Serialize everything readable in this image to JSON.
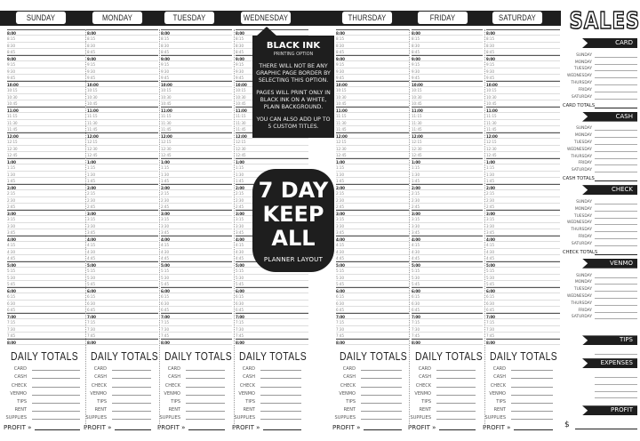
{
  "days": [
    "SUNDAY",
    "MONDAY",
    "TUESDAY",
    "WEDNESDAY",
    "THURSDAY",
    "FRIDAY",
    "SATURDAY"
  ],
  "times": [
    "8:00",
    "8:15",
    "8:30",
    "8:45",
    "9:00",
    "9:15",
    "9:30",
    "9:45",
    "10:00",
    "10:15",
    "10:30",
    "10:45",
    "11:00",
    "11:15",
    "11:30",
    "11:45",
    "12:00",
    "12:15",
    "12:30",
    "12:45",
    "1:00",
    "1:15",
    "1:30",
    "1:45",
    "2:00",
    "2:15",
    "2:30",
    "2:45",
    "3:00",
    "3:15",
    "3:30",
    "3:45",
    "4:00",
    "4:15",
    "4:30",
    "4:45",
    "5:00",
    "5:15",
    "5:30",
    "5:45",
    "6:00",
    "6:15",
    "6:30",
    "6:45",
    "7:00",
    "7:15",
    "7:30",
    "7:45",
    "8:00"
  ],
  "daily_totals": {
    "title": "DAILY TOTALS",
    "items": [
      "CARD",
      "CASH",
      "CHECK",
      "VENMO",
      "TIPS",
      "RENT",
      "SUPPLIES"
    ],
    "profit": "PROFIT »"
  },
  "sales": {
    "title": "SALES",
    "weekdays": [
      "SUNDAY",
      "MONDAY",
      "TUESDAY",
      "WEDNESDAY",
      "THURSDAY",
      "FRIDAY",
      "SATURDAY"
    ],
    "sections": [
      {
        "title": "CARD",
        "total": "CARD TOTALS"
      },
      {
        "title": "CASH",
        "total": "CASH TOTALS"
      },
      {
        "title": "CHECK",
        "total": "CHECK TOTALS"
      },
      {
        "title": "VENMO",
        "total": ""
      }
    ],
    "tips": "TIPS",
    "expenses": "EXPENSES",
    "profit": "PROFIT",
    "dollar": "$"
  },
  "callout": {
    "title": "BLACK INK",
    "subtitle": "PRINTING OPTION",
    "lines": [
      "THERE WILL NOT BE ANY GRAPHIC PAGE BORDER BY SELECTING THIS OPTION.",
      "PAGES WILL PRINT ONLY IN BLACK INK ON A WHITE, PLAIN BACKGROUND.",
      "YOU CAN ALSO ADD UP TO 5 CUSTOM TITLES."
    ]
  },
  "badge": {
    "line1": "7 DAY",
    "line2": "KEEPALL",
    "line3": "PLANNER LAYOUT"
  },
  "colors": {
    "ink": "#1e1e1e",
    "paper": "#ffffff"
  }
}
